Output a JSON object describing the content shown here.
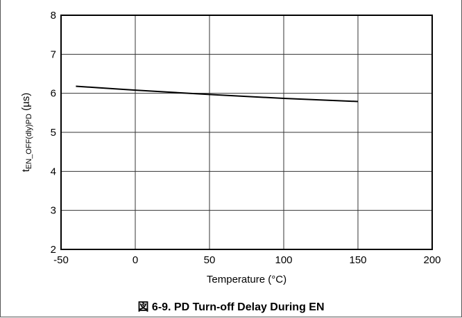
{
  "chart_data": {
    "type": "line",
    "caption": "図 6-9. PD Turn-off Delay During EN",
    "xlabel": "Temperature (°C)",
    "ylabel": {
      "main": "t",
      "subscript": "EN_OFF(dly)PD",
      "unit": " (µs)"
    },
    "xlim": [
      -50,
      200
    ],
    "ylim": [
      2,
      8
    ],
    "x_ticks": [
      "-50",
      "0",
      "50",
      "100",
      "150",
      "200"
    ],
    "y_ticks": [
      "2",
      "3",
      "4",
      "5",
      "6",
      "7",
      "8"
    ],
    "grid": true,
    "series": [
      {
        "x": [
          -40,
          0,
          50,
          100,
          150
        ],
        "y": [
          6.18,
          6.08,
          5.97,
          5.87,
          5.79
        ]
      }
    ],
    "colors": {
      "line": "#000000",
      "grid": "#333333",
      "frame": "#000000"
    }
  }
}
